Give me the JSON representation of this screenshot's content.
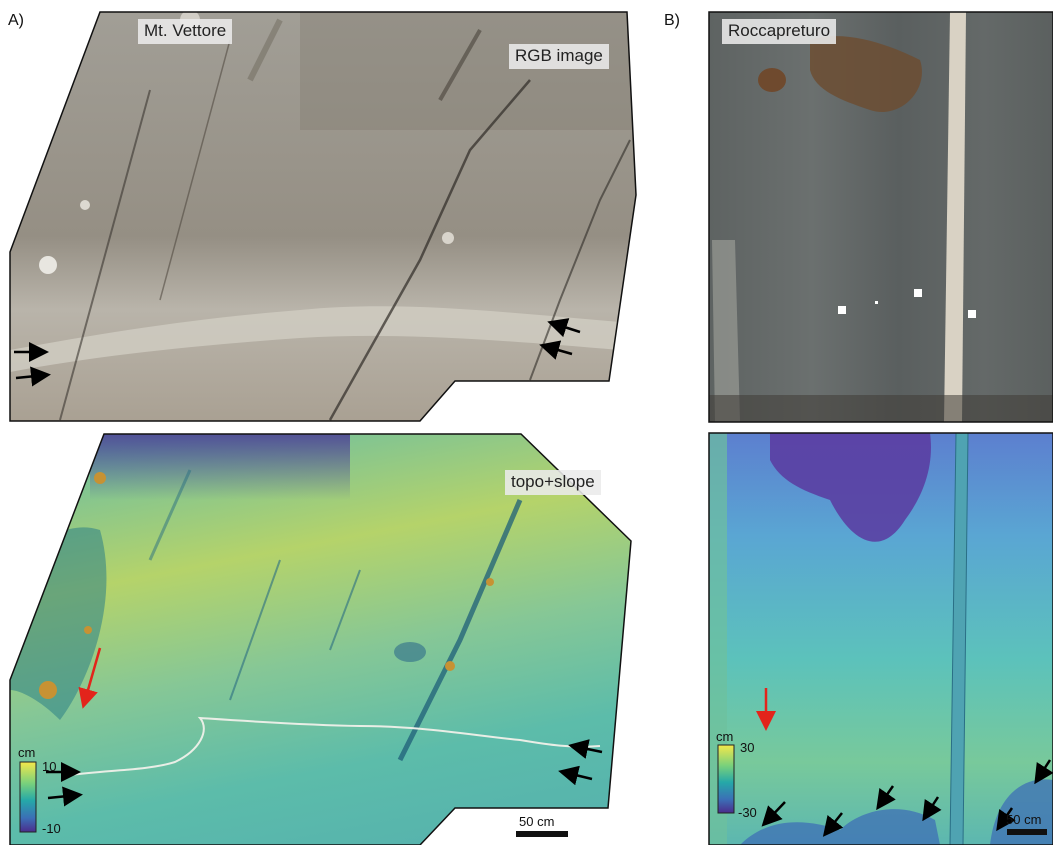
{
  "figure": {
    "panel_a": {
      "letter": "A)",
      "top": {
        "site_label": "Mt. Vettore",
        "mode_label": "RGB image"
      },
      "bottom": {
        "mode_label": "topo+slope",
        "colorbar": {
          "unit": "cm",
          "max_label": "10",
          "min_label": "-10"
        },
        "scalebar": "50 cm"
      }
    },
    "panel_b": {
      "letter": "B)",
      "top": {
        "site_label": "Roccapreturo"
      },
      "bottom": {
        "colorbar": {
          "unit": "cm",
          "max_label": "30",
          "min_label": "-30"
        },
        "scalebar": "50 cm"
      }
    },
    "colors": {
      "rock_gray": "#9a958c",
      "rock_dark": "#555a5a",
      "topo_high": "#e6d24a",
      "topo_mid": "#5bc0a6",
      "topo_low": "#4b2c8c",
      "arrow_black": "#000000",
      "arrow_red": "#e3241b",
      "trace_line": "#e9eee6"
    }
  }
}
